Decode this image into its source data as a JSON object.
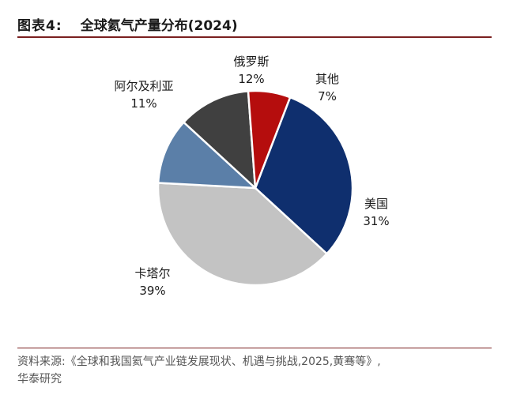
{
  "header": {
    "figure_label": "图表4:",
    "title": "全球氦气产量分布(2024)"
  },
  "source": {
    "line1": "资料来源:《全球和我国氦气产业链发展现状、机遇与挑战,2025,黄骞等》,",
    "line2": "华泰研究"
  },
  "chart_data": {
    "type": "pie",
    "title": "全球氦气产量分布(2024)",
    "slices": [
      {
        "label": "美国",
        "value": 31,
        "pct_label": "31%",
        "color": "#0f2f6e"
      },
      {
        "label": "卡塔尔",
        "value": 39,
        "pct_label": "39%",
        "color": "#c3c3c3"
      },
      {
        "label": "阿尔及利亚",
        "value": 11,
        "pct_label": "11%",
        "color": "#5b7fa8"
      },
      {
        "label": "俄罗斯",
        "value": 12,
        "pct_label": "12%",
        "color": "#404040"
      },
      {
        "label": "其他",
        "value": 7,
        "pct_label": "7%",
        "color": "#b50d0d"
      }
    ],
    "start_angle_deg": 21,
    "direction": "clockwise",
    "legend": "none"
  }
}
